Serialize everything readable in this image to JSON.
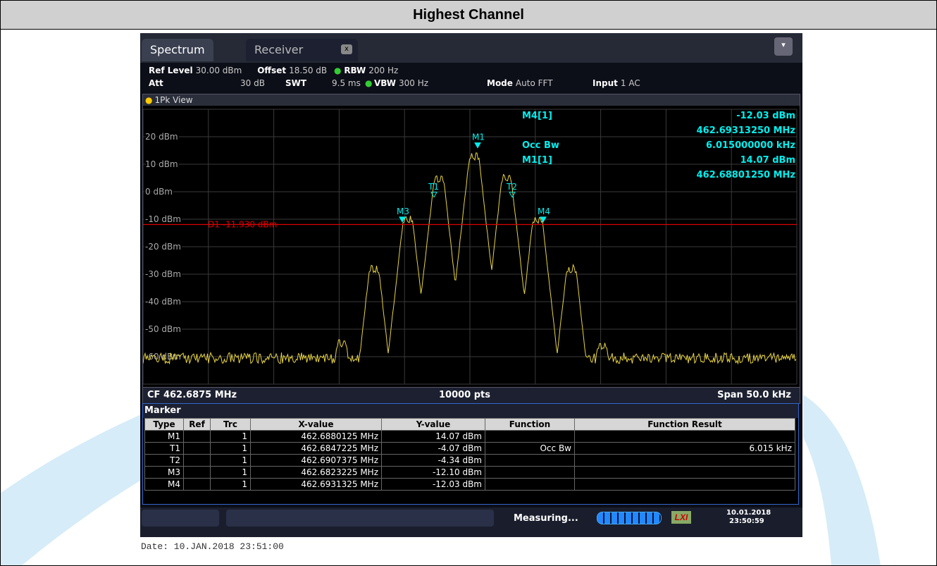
{
  "header": {
    "title": "Highest Channel"
  },
  "instrument": {
    "tabs": [
      "Spectrum",
      "Receiver"
    ],
    "settings": {
      "row1": [
        [
          "Ref Level",
          "30.00 dBm"
        ],
        [
          "Offset",
          "18.50 dB"
        ],
        [
          "RBW",
          "200 Hz"
        ]
      ],
      "row2": [
        [
          "Att",
          "30 dB"
        ],
        [
          "SWT",
          "9.5 ms"
        ],
        [
          "VBW",
          "300 Hz"
        ],
        [
          "Mode",
          "Auto FFT"
        ],
        [
          "Input",
          "1 AC"
        ]
      ]
    },
    "view": "1Pk View",
    "y_labels": [
      "20 dBm",
      "10 dBm",
      "0 dBm",
      "-10 dBm",
      "-20 dBm",
      "-30 dBm",
      "-40 dBm",
      "-50 dBm",
      "-60 dBm"
    ],
    "display_line": "D1 -11.930 dBm",
    "marker_tags": [
      "M1",
      "T1",
      "T2",
      "M3",
      "M4"
    ],
    "readout": [
      [
        "M4[1]",
        "-12.03 dBm"
      ],
      [
        "",
        "462.69313250 MHz"
      ],
      [
        "Occ Bw",
        "6.015000000 kHz"
      ],
      [
        "M1[1]",
        "14.07 dBm"
      ],
      [
        "",
        "462.68801250 MHz"
      ]
    ],
    "footer": {
      "left": "CF 462.6875 MHz",
      "center": "10000 pts",
      "right": "Span 50.0 kHz"
    },
    "table": {
      "title": "Marker",
      "headers": [
        "Type",
        "Ref",
        "Trc",
        "X-value",
        "Y-value",
        "Function",
        "Function Result"
      ],
      "rows": [
        [
          "M1",
          "",
          "1",
          "462.6880125 MHz",
          "14.07 dBm",
          "",
          ""
        ],
        [
          "T1",
          "",
          "1",
          "462.6847225 MHz",
          "-4.07 dBm",
          "Occ Bw",
          "6.015 kHz"
        ],
        [
          "T2",
          "",
          "1",
          "462.6907375 MHz",
          "-4.34 dBm",
          "",
          ""
        ],
        [
          "M3",
          "",
          "1",
          "462.6823225 MHz",
          "-12.10 dBm",
          "",
          ""
        ],
        [
          "M4",
          "",
          "1",
          "462.6931325 MHz",
          "-12.03 dBm",
          "",
          ""
        ]
      ]
    },
    "status": {
      "message": "Measuring...",
      "date": "10.01.2018",
      "time": "23:50:59"
    }
  },
  "date_line": "Date: 10.JAN.2018  23:51:00"
}
